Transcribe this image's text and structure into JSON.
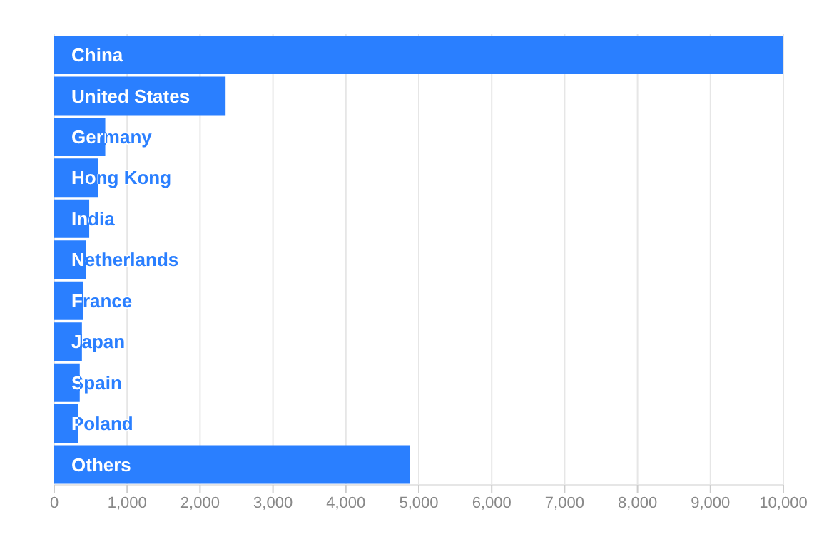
{
  "chart_data": {
    "type": "bar",
    "orientation": "horizontal",
    "categories": [
      "China",
      "United States",
      "Germany",
      "Hong Kong",
      "India",
      "Netherlands",
      "France",
      "Japan",
      "Spain",
      "Poland",
      "Others"
    ],
    "values": [
      10000,
      2350,
      700,
      600,
      480,
      440,
      400,
      380,
      350,
      330,
      4880
    ],
    "color": "#2a7fff",
    "xlim": [
      0,
      10000
    ],
    "xticks": [
      0,
      {
        "value": 1000,
        "label": "1,000"
      },
      {
        "value": 2000,
        "label": "2,000"
      },
      {
        "value": 3000,
        "label": "3,000"
      },
      {
        "value": 4000,
        "label": "4,000"
      },
      {
        "value": 5000,
        "label": "5,000"
      },
      {
        "value": 6000,
        "label": "6,000"
      },
      {
        "value": 7000,
        "label": "7,000"
      },
      {
        "value": 8000,
        "label": "8,000"
      },
      {
        "value": 9000,
        "label": "9,000"
      },
      {
        "value": 10000,
        "label": "10,000"
      }
    ],
    "grid": "x",
    "tick_labels": "x"
  }
}
